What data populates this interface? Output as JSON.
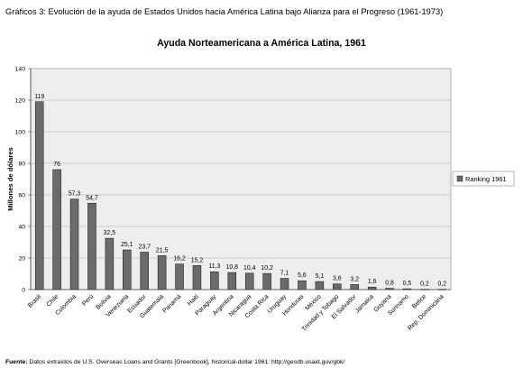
{
  "figure_title": "Gráficos 3: Evolución de la ayuda de Estados Unidos hacia América Latina bajo Alianza para el Progreso (1961-1973)",
  "source": {
    "label": "Fuente:",
    "text": " Datos extraídos de U.S. Overseas Loans and Grants [Greenbook], historical-dollar 1961: http://gesdb.usaid.gov/gbk/"
  },
  "colors": {
    "bar": "#6b6b6b",
    "plot_bg": "#eeeeee",
    "grid": "#b0b0b0"
  },
  "chart_data": {
    "type": "bar",
    "title": "Ayuda Norteamericana a América Latina, 1961",
    "ylabel": "Millones de dólares",
    "xlabel": "",
    "ylim": [
      0,
      140
    ],
    "yticks": [
      "0",
      "20",
      "40",
      "60",
      "80",
      "100",
      "120",
      "140"
    ],
    "grid": true,
    "legend": {
      "position": "right",
      "entries": [
        "Ranking 1961"
      ]
    },
    "categories": [
      "Brasil",
      "Chile",
      "Colombia",
      "Perú",
      "Bolivia",
      "Venezuela",
      "Ecuador",
      "Guatemala",
      "Panamá",
      "Haití",
      "Paraguay",
      "Argentina",
      "Nicaragua",
      "Costa Rica",
      "Uruguay",
      "Honduras",
      "México",
      "Trinidad y Tobago",
      "El Salvador",
      "Jamaica",
      "Guyana",
      "Surinamo",
      "Belice",
      "Rep. Dominicana"
    ],
    "values": [
      119,
      76,
      57.3,
      54.7,
      32.5,
      25.1,
      23.7,
      21.5,
      16.2,
      15.2,
      11.3,
      10.8,
      10.4,
      10.2,
      7.1,
      5.6,
      5.1,
      3.6,
      3.2,
      1.6,
      0.8,
      0.5,
      0.2,
      0.2
    ],
    "data_labels": [
      "119",
      "76",
      "57,3",
      "54,7",
      "32,5",
      "25,1",
      "23,7",
      "21,5",
      "16,2",
      "15,2",
      "11,3",
      "10,8",
      "10,4",
      "10,2",
      "7,1",
      "5,6",
      "5,1",
      "3,6",
      "3,2",
      "1,6",
      "0,8",
      "0,5",
      "0,2",
      "0,2"
    ]
  }
}
